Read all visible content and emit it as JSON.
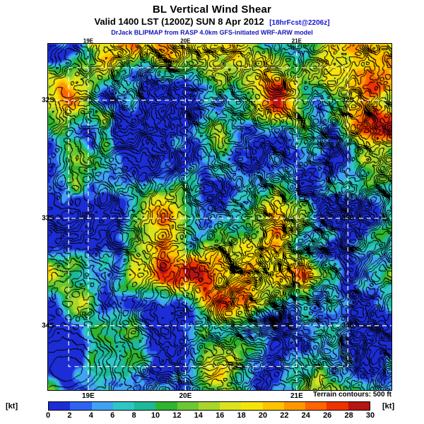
{
  "header": {
    "title": "BL Vertical Wind Shear",
    "valid_line": "Valid 1400 LST (1200Z) SUN 8 Apr 2012",
    "forecast_tag": "[18hrFcst@2206z]",
    "model_line": "DrJack BLIPMAP from RASP 4.0km GFS-initiated WRF-ARW model"
  },
  "map": {
    "grid_color": "#ffffff",
    "lon_labels": [
      {
        "text": "19E",
        "xn": 0.117
      },
      {
        "text": "20E",
        "xn": 0.4
      },
      {
        "text": "21E",
        "xn": 0.724
      }
    ],
    "lat_labels": [
      {
        "text": "32S",
        "yn": 0.163
      },
      {
        "text": "33S",
        "yn": 0.504
      },
      {
        "text": "34S",
        "yn": 0.814
      }
    ],
    "boundary_box": {
      "x0n": 0.06,
      "y0n": 0.069,
      "x1n": 0.873,
      "y1n": 0.932
    }
  },
  "terrain_note": "Terrain contours: 500 ft",
  "colorbar": {
    "unit_left": "[kt]",
    "unit_right": "[kt]",
    "ticks": [
      "0",
      "2",
      "4",
      "6",
      "8",
      "10",
      "12",
      "14",
      "16",
      "18",
      "20",
      "22",
      "24",
      "26",
      "28",
      "30"
    ],
    "segment_colors": [
      "#1c2dd6",
      "#2e62f0",
      "#3fa2f5",
      "#2fc6c6",
      "#1db897",
      "#2eb42e",
      "#6cc832",
      "#a8d62a",
      "#dce31e",
      "#f5e40a",
      "#ffc400",
      "#ff9800",
      "#ff6400",
      "#ee3200",
      "#b71414"
    ]
  },
  "chart_data": {
    "type": "heatmap",
    "title": "BL Vertical Wind Shear",
    "units": "kt",
    "scale": {
      "min": 0,
      "max": 30,
      "step": 2
    },
    "lon_ticks": [
      "19E",
      "20E",
      "21E"
    ],
    "lat_ticks": [
      "32S",
      "33S",
      "34S"
    ],
    "terrain_contour_interval": "500 ft",
    "base_kt": 11,
    "spread_kt": 60,
    "noise": {
      "shear_seed": 101,
      "terrain_seed": 201
    },
    "features": [
      {
        "x": -0.01,
        "y": 0.5,
        "rx": 0.035,
        "ry": 0.55,
        "amp": -7
      },
      {
        "x": 0.05,
        "y": 0.94,
        "rx": 0.05,
        "ry": 0.06,
        "amp": -16
      },
      {
        "x": 0.3,
        "y": 0.26,
        "rx": 0.03,
        "ry": 0.05,
        "amp": -13
      },
      {
        "x": 0.165,
        "y": 0.24,
        "rx": 0.018,
        "ry": 0.05,
        "amp": 15
      },
      {
        "x": 0.815,
        "y": 0.55,
        "rx": 0.028,
        "ry": 0.022,
        "amp": 16
      },
      {
        "x": 0.42,
        "y": 0.05,
        "rx": 0.07,
        "ry": 0.05,
        "amp": 8
      },
      {
        "x": 0.8,
        "y": 0.08,
        "rx": 0.05,
        "ry": 0.04,
        "amp": 8
      },
      {
        "x": 0.9,
        "y": 0.22,
        "rx": 0.045,
        "ry": 0.04,
        "amp": 7
      },
      {
        "x": 0.33,
        "y": 0.88,
        "rx": 0.05,
        "ry": 0.04,
        "amp": 8
      },
      {
        "x": 0.6,
        "y": 0.5,
        "rx": 0.22,
        "ry": 0.13,
        "amp": 3.5
      },
      {
        "x": 0.1,
        "y": 0.02,
        "rx": 0.05,
        "ry": 0.03,
        "amp": -7
      },
      {
        "x": 0.02,
        "y": 0.74,
        "rx": 0.03,
        "ry": 0.05,
        "amp": -10
      },
      {
        "x": 0.76,
        "y": 0.68,
        "rx": 0.05,
        "ry": 0.05,
        "amp": 7
      },
      {
        "x": 0.63,
        "y": 0.83,
        "rx": 0.04,
        "ry": 0.035,
        "amp": 6
      }
    ]
  }
}
